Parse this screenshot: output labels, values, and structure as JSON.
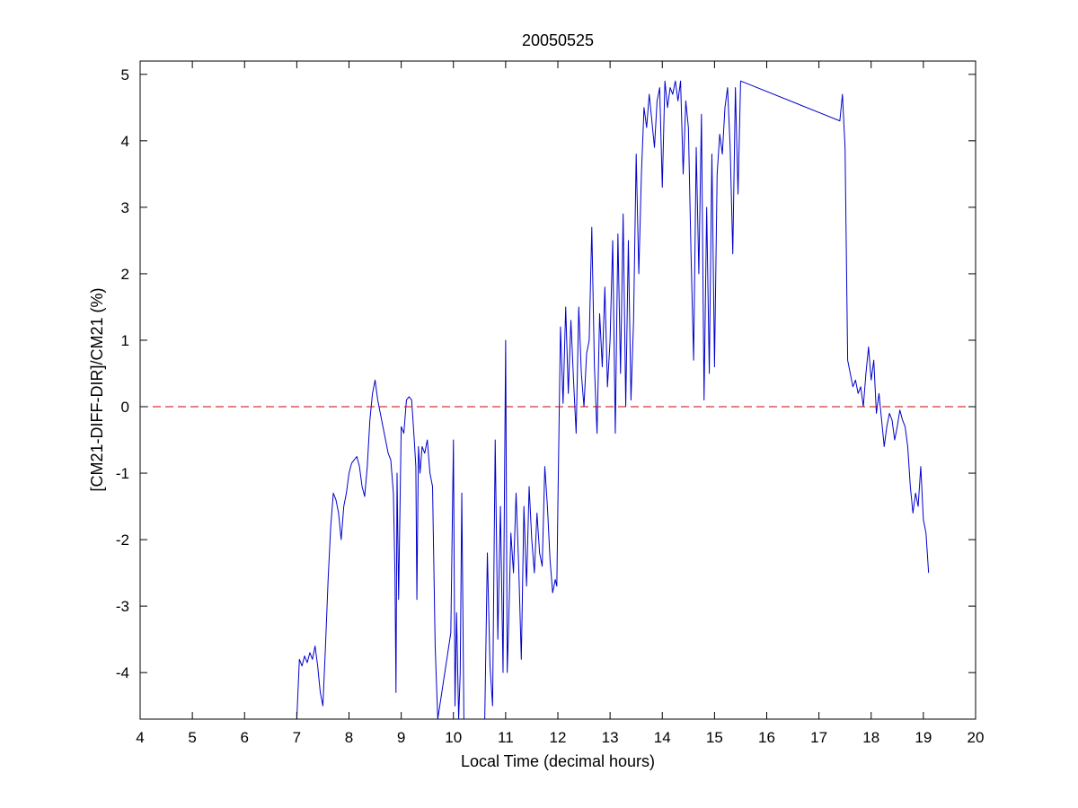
{
  "chart_data": {
    "type": "line",
    "title": "20050525",
    "xlabel": "Local Time (decimal hours)",
    "ylabel": "[CM21-DIFF-DIR]/CM21 (%)",
    "xlim": [
      4,
      20
    ],
    "ylim": [
      -4.7,
      5.2
    ],
    "xticks": [
      "4",
      "5",
      "6",
      "7",
      "8",
      "9",
      "10",
      "11",
      "12",
      "13",
      "14",
      "15",
      "16",
      "17",
      "18",
      "19",
      "20"
    ],
    "yticks": [
      "-4",
      "-3",
      "-2",
      "-1",
      "0",
      "1",
      "2",
      "3",
      "4",
      "5"
    ],
    "xtick_values": [
      4,
      5,
      6,
      7,
      8,
      9,
      10,
      11,
      12,
      13,
      14,
      15,
      16,
      17,
      18,
      19,
      20
    ],
    "ytick_values": [
      -4,
      -3,
      -2,
      -1,
      0,
      1,
      2,
      3,
      4,
      5
    ],
    "series": [
      {
        "color": "#0000cc",
        "x": [
          7.0,
          7.05,
          7.1,
          7.15,
          7.2,
          7.25,
          7.3,
          7.35,
          7.4,
          7.45,
          7.5,
          7.55,
          7.6,
          7.65,
          7.7,
          7.75,
          7.8,
          7.85,
          7.9,
          7.95,
          8.0,
          8.05,
          8.1,
          8.15,
          8.2,
          8.25,
          8.3,
          8.35,
          8.4,
          8.45,
          8.5,
          8.55,
          8.6,
          8.65,
          8.7,
          8.75,
          8.8,
          8.85,
          8.88,
          8.9,
          8.92,
          8.95,
          9.0,
          9.05,
          9.1,
          9.15,
          9.2,
          9.25,
          9.28,
          9.3,
          9.33,
          9.36,
          9.4,
          9.45,
          9.5,
          9.55,
          9.6,
          9.65,
          9.7,
          9.95,
          10.0,
          10.03,
          10.06,
          10.1,
          10.13,
          10.16,
          10.2,
          10.25,
          10.6,
          10.65,
          10.7,
          10.75,
          10.8,
          10.85,
          10.9,
          10.95,
          11.0,
          11.03,
          11.06,
          11.1,
          11.15,
          11.2,
          11.25,
          11.3,
          11.35,
          11.4,
          11.45,
          11.5,
          11.55,
          11.6,
          11.65,
          11.7,
          11.75,
          11.8,
          11.85,
          11.9,
          11.95,
          11.98,
          12.0,
          12.05,
          12.1,
          12.15,
          12.2,
          12.25,
          12.3,
          12.35,
          12.4,
          12.45,
          12.5,
          12.55,
          12.6,
          12.65,
          12.7,
          12.75,
          12.8,
          12.85,
          12.9,
          12.95,
          13.0,
          13.05,
          13.1,
          13.15,
          13.2,
          13.25,
          13.3,
          13.35,
          13.4,
          13.45,
          13.5,
          13.55,
          13.6,
          13.65,
          13.7,
          13.75,
          13.8,
          13.85,
          13.9,
          13.95,
          14.0,
          14.05,
          14.1,
          14.15,
          14.2,
          14.25,
          14.3,
          14.35,
          14.4,
          14.45,
          14.5,
          14.55,
          14.6,
          14.65,
          14.7,
          14.75,
          14.8,
          14.85,
          14.9,
          14.95,
          15.0,
          15.05,
          15.1,
          15.15,
          15.2,
          15.25,
          15.3,
          15.35,
          15.4,
          15.45,
          15.5,
          17.4,
          17.45,
          17.5,
          17.55,
          17.6,
          17.65,
          17.7,
          17.75,
          17.8,
          17.85,
          17.9,
          17.95,
          18.0,
          18.05,
          18.1,
          18.15,
          18.2,
          18.25,
          18.3,
          18.35,
          18.4,
          18.45,
          18.5,
          18.55,
          18.6,
          18.65,
          18.7,
          18.75,
          18.8,
          18.85,
          18.9,
          18.95,
          19.0,
          19.05,
          19.1
        ],
        "y": [
          -4.7,
          -3.8,
          -3.9,
          -3.75,
          -3.85,
          -3.7,
          -3.8,
          -3.6,
          -3.9,
          -4.3,
          -4.5,
          -3.6,
          -2.6,
          -1.8,
          -1.3,
          -1.4,
          -1.6,
          -2.0,
          -1.5,
          -1.3,
          -1.0,
          -0.85,
          -0.8,
          -0.75,
          -0.9,
          -1.2,
          -1.35,
          -0.9,
          -0.2,
          0.2,
          0.4,
          0.1,
          -0.1,
          -0.3,
          -0.5,
          -0.7,
          -0.8,
          -1.3,
          -2.5,
          -4.3,
          -1.0,
          -2.9,
          -0.3,
          -0.4,
          0.1,
          0.15,
          0.1,
          -0.5,
          -0.9,
          -2.9,
          -0.6,
          -1.0,
          -0.6,
          -0.7,
          -0.5,
          -1.0,
          -1.2,
          -3.6,
          -4.7,
          -3.4,
          -0.5,
          -4.5,
          -3.1,
          -4.7,
          -4.0,
          -1.3,
          -4.7,
          -4.7,
          -4.7,
          -2.2,
          -3.9,
          -4.5,
          -0.5,
          -3.5,
          -1.5,
          -4.0,
          1.0,
          -4.0,
          -3.2,
          -1.9,
          -2.5,
          -1.3,
          -2.4,
          -3.8,
          -1.5,
          -2.7,
          -1.2,
          -2.0,
          -2.5,
          -1.6,
          -2.2,
          -2.4,
          -0.9,
          -1.5,
          -2.3,
          -2.8,
          -2.6,
          -2.7,
          -1.5,
          1.2,
          0.05,
          1.5,
          0.2,
          1.3,
          0.4,
          -0.4,
          1.5,
          0.5,
          0.0,
          0.8,
          1.0,
          2.7,
          0.6,
          -0.4,
          1.4,
          0.6,
          1.8,
          0.3,
          1.0,
          2.5,
          -0.4,
          2.6,
          0.5,
          2.9,
          0.0,
          2.5,
          0.1,
          1.3,
          3.8,
          2.0,
          3.5,
          4.5,
          4.2,
          4.7,
          4.3,
          3.9,
          4.6,
          4.8,
          3.3,
          4.9,
          4.5,
          4.8,
          4.7,
          4.9,
          4.6,
          4.9,
          3.5,
          4.6,
          4.2,
          2.3,
          0.7,
          3.9,
          2.0,
          4.4,
          0.1,
          3.0,
          0.5,
          3.8,
          0.6,
          3.5,
          4.1,
          3.8,
          4.5,
          4.8,
          3.9,
          2.3,
          4.8,
          3.2,
          4.9,
          4.3,
          4.7,
          3.9,
          0.7,
          0.5,
          0.3,
          0.4,
          0.2,
          0.3,
          0.0,
          0.5,
          0.9,
          0.4,
          0.7,
          -0.1,
          0.2,
          -0.2,
          -0.6,
          -0.3,
          -0.1,
          -0.2,
          -0.5,
          -0.3,
          -0.05,
          -0.2,
          -0.3,
          -0.6,
          -1.2,
          -1.6,
          -1.3,
          -1.5,
          -0.9,
          -1.7,
          -1.9,
          -2.5
        ]
      }
    ],
    "reference_line": {
      "y": 0,
      "color": "#cc0000",
      "style": "dashed"
    },
    "grid": false,
    "legend": "none"
  }
}
